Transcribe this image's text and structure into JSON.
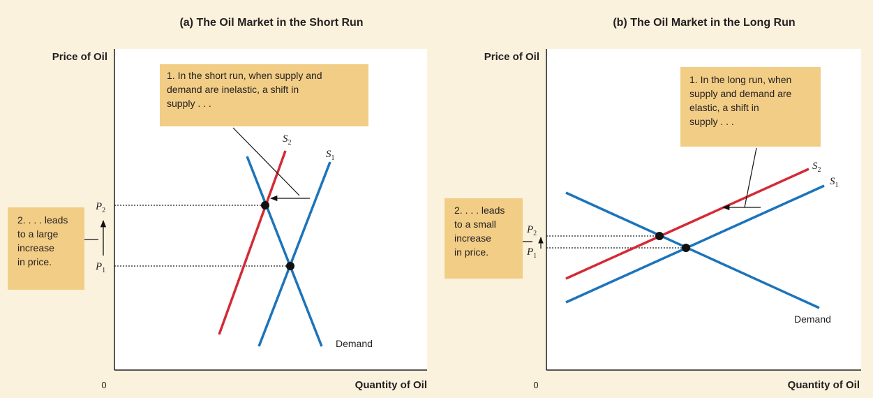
{
  "panels": {
    "a": {
      "title": "(a) The Oil Market in the Short Run",
      "y_axis_label": "Price of Oil",
      "x_axis_label": "Quantity of Oil",
      "origin_label": "0",
      "supply_new_label": "S",
      "supply_new_sub": "2",
      "supply_old_label": "S",
      "supply_old_sub": "1",
      "demand_label": "Demand",
      "p2_label": "P",
      "p2_sub": "2",
      "p1_label": "P",
      "p1_sub": "1",
      "callout_top": [
        "1. In the short run, when supply and",
        "demand are inelastic, a shift in",
        "supply . . ."
      ],
      "callout_left": [
        "2. . . . leads",
        "to a large",
        "increase",
        "in price."
      ]
    },
    "b": {
      "title": "(b) The Oil Market in the Long Run",
      "y_axis_label": "Price of Oil",
      "x_axis_label": "Quantity of Oil",
      "origin_label": "0",
      "supply_new_label": "S",
      "supply_new_sub": "2",
      "supply_old_label": "S",
      "supply_old_sub": "1",
      "demand_label": "Demand",
      "p2_label": "P",
      "p2_sub": "2",
      "p1_label": "P",
      "p1_sub": "1",
      "callout_top": [
        "1. In the long run, when",
        "supply and demand are",
        "elastic, a shift in",
        "supply . . ."
      ],
      "callout_left": [
        "2. . . . leads",
        "to a small",
        "increase",
        "in price."
      ]
    }
  },
  "colors": {
    "background": "#fbf2de",
    "plot_area": "#ffffff",
    "callout": "#f2cd86",
    "supply_new": "#d42a36",
    "supply_old": "#1b74bb",
    "demand": "#1b74bb",
    "equilibrium_point": "#111111"
  }
}
